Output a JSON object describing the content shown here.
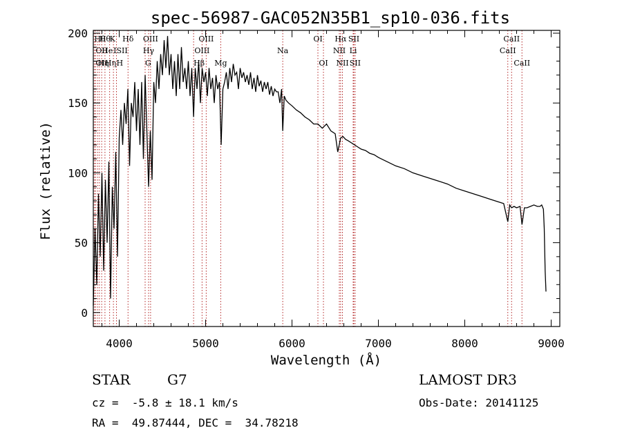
{
  "chart_data": {
    "type": "line",
    "title": "spec-56987-GAC052N35B1_sp10-036.fits",
    "xlabel": "Wavelength (Å)",
    "ylabel": "Flux (relative)",
    "xlim": [
      3700,
      9100
    ],
    "ylim": [
      -10,
      202
    ],
    "xticks": [
      4000,
      5000,
      6000,
      7000,
      8000,
      9000
    ],
    "xtick_labels": [
      "4000",
      "5000",
      "6000",
      "7000",
      "8000",
      "9000"
    ],
    "yticks": [
      0,
      50,
      100,
      150,
      200
    ],
    "ytick_labels": [
      "0",
      "50",
      "100",
      "150",
      "200"
    ],
    "line_color": "#000000",
    "marker_color": "#b22222",
    "series": [
      {
        "name": "flux",
        "x": [
          3700,
          3720,
          3740,
          3760,
          3780,
          3800,
          3820,
          3840,
          3860,
          3880,
          3900,
          3920,
          3940,
          3960,
          3980,
          4000,
          4020,
          4040,
          4060,
          4080,
          4100,
          4120,
          4140,
          4160,
          4180,
          4200,
          4220,
          4240,
          4260,
          4280,
          4300,
          4320,
          4340,
          4360,
          4380,
          4400,
          4420,
          4440,
          4460,
          4480,
          4500,
          4520,
          4540,
          4560,
          4580,
          4600,
          4620,
          4640,
          4660,
          4680,
          4700,
          4720,
          4740,
          4760,
          4780,
          4800,
          4820,
          4840,
          4861,
          4880,
          4900,
          4920,
          4940,
          4960,
          4980,
          5000,
          5020,
          5040,
          5060,
          5080,
          5100,
          5120,
          5140,
          5160,
          5180,
          5200,
          5220,
          5240,
          5260,
          5280,
          5300,
          5320,
          5340,
          5360,
          5380,
          5400,
          5420,
          5440,
          5460,
          5480,
          5500,
          5520,
          5540,
          5560,
          5580,
          5600,
          5620,
          5640,
          5660,
          5680,
          5700,
          5720,
          5740,
          5760,
          5780,
          5800,
          5820,
          5840,
          5860,
          5880,
          5893,
          5910,
          5930,
          5960,
          6000,
          6050,
          6100,
          6150,
          6200,
          6250,
          6300,
          6350,
          6400,
          6450,
          6500,
          6530,
          6563,
          6590,
          6620,
          6650,
          6700,
          6750,
          6800,
          6850,
          6900,
          6950,
          7000,
          7100,
          7200,
          7300,
          7400,
          7500,
          7600,
          7700,
          7800,
          7900,
          8000,
          8100,
          8200,
          8300,
          8400,
          8450,
          8498,
          8520,
          8542,
          8570,
          8600,
          8640,
          8662,
          8690,
          8720,
          8760,
          8800,
          8840,
          8870,
          8890,
          8910,
          8920,
          8930,
          8940
        ],
        "values": [
          5,
          60,
          20,
          85,
          40,
          100,
          30,
          95,
          50,
          108,
          10,
          90,
          60,
          115,
          40,
          125,
          145,
          120,
          150,
          135,
          160,
          105,
          150,
          140,
          165,
          130,
          160,
          120,
          165,
          110,
          170,
          130,
          90,
          130,
          95,
          165,
          150,
          180,
          160,
          185,
          170,
          195,
          175,
          198,
          170,
          185,
          160,
          180,
          155,
          185,
          160,
          190,
          165,
          175,
          160,
          180,
          155,
          175,
          140,
          175,
          160,
          180,
          150,
          175,
          165,
          172,
          155,
          175,
          160,
          168,
          150,
          170,
          160,
          165,
          120,
          160,
          165,
          172,
          160,
          175,
          165,
          178,
          170,
          172,
          160,
          175,
          168,
          172,
          165,
          170,
          163,
          172,
          160,
          168,
          158,
          170,
          162,
          166,
          158,
          165,
          160,
          165,
          156,
          162,
          155,
          160,
          158,
          158,
          150,
          160,
          130,
          155,
          152,
          150,
          148,
          145,
          143,
          140,
          138,
          135,
          135,
          132,
          135,
          130,
          128,
          115,
          125,
          126,
          124,
          123,
          121,
          119,
          117,
          116,
          114,
          113,
          111,
          108,
          105,
          103,
          100,
          98,
          96,
          94,
          92,
          89,
          87,
          85,
          83,
          81,
          79,
          78,
          65,
          77,
          75,
          76,
          75,
          76,
          63,
          75,
          75,
          76,
          77,
          76,
          76,
          77,
          74,
          60,
          30,
          15
        ]
      }
    ],
    "line_markers": [
      {
        "x": 3711,
        "label": "Hθ",
        "row": 1,
        "anchor": "start"
      },
      {
        "x": 3727,
        "label": "OII",
        "row": 2,
        "anchor": "start"
      },
      {
        "x": 3727,
        "label": "OII",
        "row": 3,
        "anchor": "start"
      },
      {
        "x": 3750,
        "label": "Hη",
        "row": 3,
        "anchor": "start"
      },
      {
        "x": 3770,
        "label": "Hθ",
        "row": 1,
        "anchor": "start"
      },
      {
        "x": 3797,
        "label": "He",
        "row": 2,
        "anchor": "start"
      },
      {
        "x": 3835,
        "label": "Hη",
        "row": 3,
        "anchor": "start"
      },
      {
        "x": 3889,
        "label": "K",
        "row": 1,
        "anchor": "start"
      },
      {
        "x": 3933,
        "label": "I",
        "row": 2,
        "anchor": "start"
      },
      {
        "x": 3968,
        "label": "SII",
        "row": 2,
        "anchor": "start"
      },
      {
        "x": 3968,
        "label": "H",
        "row": 3,
        "anchor": "start"
      },
      {
        "x": 4102,
        "label": "Hδ",
        "row": 1,
        "anchor": "middle"
      },
      {
        "x": 4300,
        "label": "G",
        "row": 3,
        "anchor": "start"
      },
      {
        "x": 4340,
        "label": "Hγ",
        "row": 2,
        "anchor": "middle"
      },
      {
        "x": 4363,
        "label": "OIII",
        "row": 1,
        "anchor": "middle"
      },
      {
        "x": 4861,
        "label": "Hβ",
        "row": 3,
        "anchor": "start"
      },
      {
        "x": 4959,
        "label": "OIII",
        "row": 2,
        "anchor": "middle"
      },
      {
        "x": 5007,
        "label": "OIII",
        "row": 1,
        "anchor": "middle"
      },
      {
        "x": 5175,
        "label": "Mg",
        "row": 3,
        "anchor": "middle"
      },
      {
        "x": 5893,
        "label": "Na",
        "row": 2,
        "anchor": "middle"
      },
      {
        "x": 6300,
        "label": "OI",
        "row": 1,
        "anchor": "middle"
      },
      {
        "x": 6364,
        "label": "OI",
        "row": 3,
        "anchor": "middle"
      },
      {
        "x": 6548,
        "label": "NII",
        "row": 2,
        "anchor": "middle"
      },
      {
        "x": 6563,
        "label": "Hα",
        "row": 1,
        "anchor": "middle"
      },
      {
        "x": 6584,
        "label": "NII",
        "row": 3,
        "anchor": "middle"
      },
      {
        "x": 6708,
        "label": "Li",
        "row": 2,
        "anchor": "middle"
      },
      {
        "x": 6716,
        "label": "SII",
        "row": 1,
        "anchor": "middle"
      },
      {
        "x": 6731,
        "label": "SII",
        "row": 3,
        "anchor": "middle"
      },
      {
        "x": 8498,
        "label": "CaII",
        "row": 2,
        "anchor": "middle"
      },
      {
        "x": 8542,
        "label": "CaII",
        "row": 1,
        "anchor": "middle"
      },
      {
        "x": 8662,
        "label": "CaII",
        "row": 3,
        "anchor": "middle"
      }
    ]
  },
  "info": {
    "object_class": "STAR",
    "subclass": "G7",
    "redshift": "cz =  -5.8 ± 18.1 km/s",
    "coords": "RA =  49.87444, DEC =  34.78218",
    "survey": "LAMOST DR3",
    "obs_date": "Obs-Date: 20141125"
  }
}
